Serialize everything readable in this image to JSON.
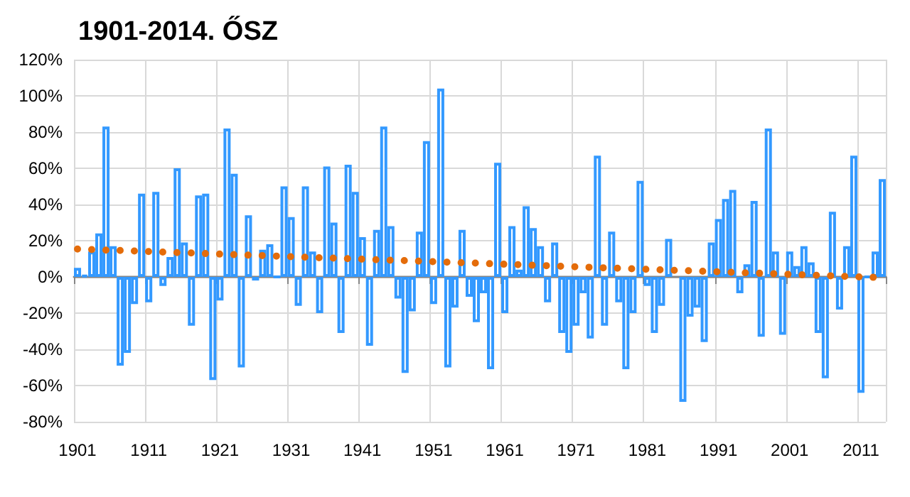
{
  "chart_data": {
    "type": "bar",
    "title": "1901-2014. ŐSZ",
    "categories": [
      "1901",
      null,
      null,
      null,
      null,
      null,
      null,
      null,
      null,
      null,
      "1911",
      null,
      null,
      null,
      null,
      null,
      null,
      null,
      null,
      null,
      "1921",
      null,
      null,
      null,
      null,
      null,
      null,
      null,
      null,
      null,
      "1931",
      null,
      null,
      null,
      null,
      null,
      null,
      null,
      null,
      null,
      "1941",
      null,
      null,
      null,
      null,
      null,
      null,
      null,
      null,
      null,
      "1951",
      null,
      null,
      null,
      null,
      null,
      null,
      null,
      null,
      null,
      "1961",
      null,
      null,
      null,
      null,
      null,
      null,
      null,
      null,
      null,
      "1971",
      null,
      null,
      null,
      null,
      null,
      null,
      null,
      null,
      null,
      "1981",
      null,
      null,
      null,
      null,
      null,
      null,
      null,
      null,
      null,
      "1991",
      null,
      null,
      null,
      null,
      null,
      null,
      null,
      null,
      null,
      "2001",
      null,
      null,
      null,
      null,
      null,
      null,
      null,
      null,
      null,
      "2011",
      null,
      null,
      null
    ],
    "series": [
      {
        "color": "#3399ff",
        "values": [
          5,
          1,
          14,
          24,
          83,
          17,
          -49,
          -42,
          -15,
          46,
          -14,
          47,
          -5,
          11,
          60,
          19,
          -27,
          45,
          46,
          -57,
          -13,
          82,
          57,
          -50,
          34,
          -2,
          15,
          18,
          0,
          50,
          33,
          -16,
          50,
          14,
          -20,
          61,
          30,
          -31,
          62,
          47,
          22,
          -38,
          26,
          83,
          28,
          -12,
          -53,
          -19,
          25,
          75,
          -15,
          104,
          -50,
          -17,
          26,
          -11,
          -25,
          -9,
          -51,
          63,
          -20,
          28,
          4,
          39,
          27,
          17,
          -14,
          19,
          -31,
          -42,
          -27,
          -9,
          -34,
          67,
          -27,
          25,
          -14,
          -51,
          -20,
          53,
          -5,
          -31,
          -16,
          21,
          null,
          -69,
          -22,
          -17,
          -36,
          19,
          32,
          43,
          48,
          -9,
          7,
          42,
          -33,
          82,
          14,
          -32,
          14,
          6,
          17,
          8,
          -31,
          -56,
          36,
          -18,
          17,
          67,
          -64,
          0,
          14,
          54
        ]
      },
      {
        "type": "line",
        "color": "#e46c0a",
        "line_style": "dotted",
        "values": [
          15.4,
          15.3,
          15.1,
          15.0,
          14.8,
          14.7,
          14.6,
          14.4,
          14.3,
          14.1,
          14.0,
          13.9,
          13.7,
          13.6,
          13.4,
          13.3,
          13.2,
          13.0,
          12.9,
          12.7,
          12.6,
          12.5,
          12.3,
          12.2,
          12.0,
          11.9,
          11.8,
          11.6,
          11.5,
          11.3,
          11.2,
          11.1,
          10.9,
          10.8,
          10.6,
          10.5,
          10.4,
          10.2,
          10.1,
          9.9,
          9.8,
          9.7,
          9.5,
          9.4,
          9.2,
          9.1,
          9.0,
          8.8,
          8.7,
          8.5,
          8.4,
          8.3,
          8.1,
          8.0,
          7.8,
          7.7,
          7.6,
          7.4,
          7.3,
          7.1,
          7.0,
          6.9,
          6.7,
          6.6,
          6.4,
          6.3,
          6.2,
          6.0,
          5.9,
          5.7,
          5.6,
          5.5,
          5.3,
          5.2,
          5.0,
          4.9,
          4.8,
          4.6,
          4.5,
          4.3,
          4.2,
          4.1,
          3.9,
          3.8,
          3.6,
          3.5,
          3.4,
          3.2,
          3.1,
          2.9,
          2.8,
          2.7,
          2.5,
          2.4,
          2.2,
          2.1,
          2.0,
          1.8,
          1.7,
          1.5,
          1.4,
          1.3,
          1.1,
          1.0,
          0.8,
          0.7,
          0.6,
          0.4,
          0.3,
          0.1,
          0.0,
          -0.1,
          -0.3,
          -0.4
        ]
      }
    ],
    "ylim": [
      -80,
      120
    ],
    "yticks": [
      {
        "value": -80,
        "label": "-80%"
      },
      {
        "value": -60,
        "label": "-60%"
      },
      {
        "value": -40,
        "label": "-40%"
      },
      {
        "value": -20,
        "label": "-20%"
      },
      {
        "value": 0,
        "label": "0%"
      },
      {
        "value": 20,
        "label": "20%"
      },
      {
        "value": 40,
        "label": "40%"
      },
      {
        "value": 60,
        "label": "60%"
      },
      {
        "value": 80,
        "label": "80%"
      },
      {
        "value": 100,
        "label": "100%"
      },
      {
        "value": 120,
        "label": "120%"
      }
    ],
    "grid": true
  }
}
